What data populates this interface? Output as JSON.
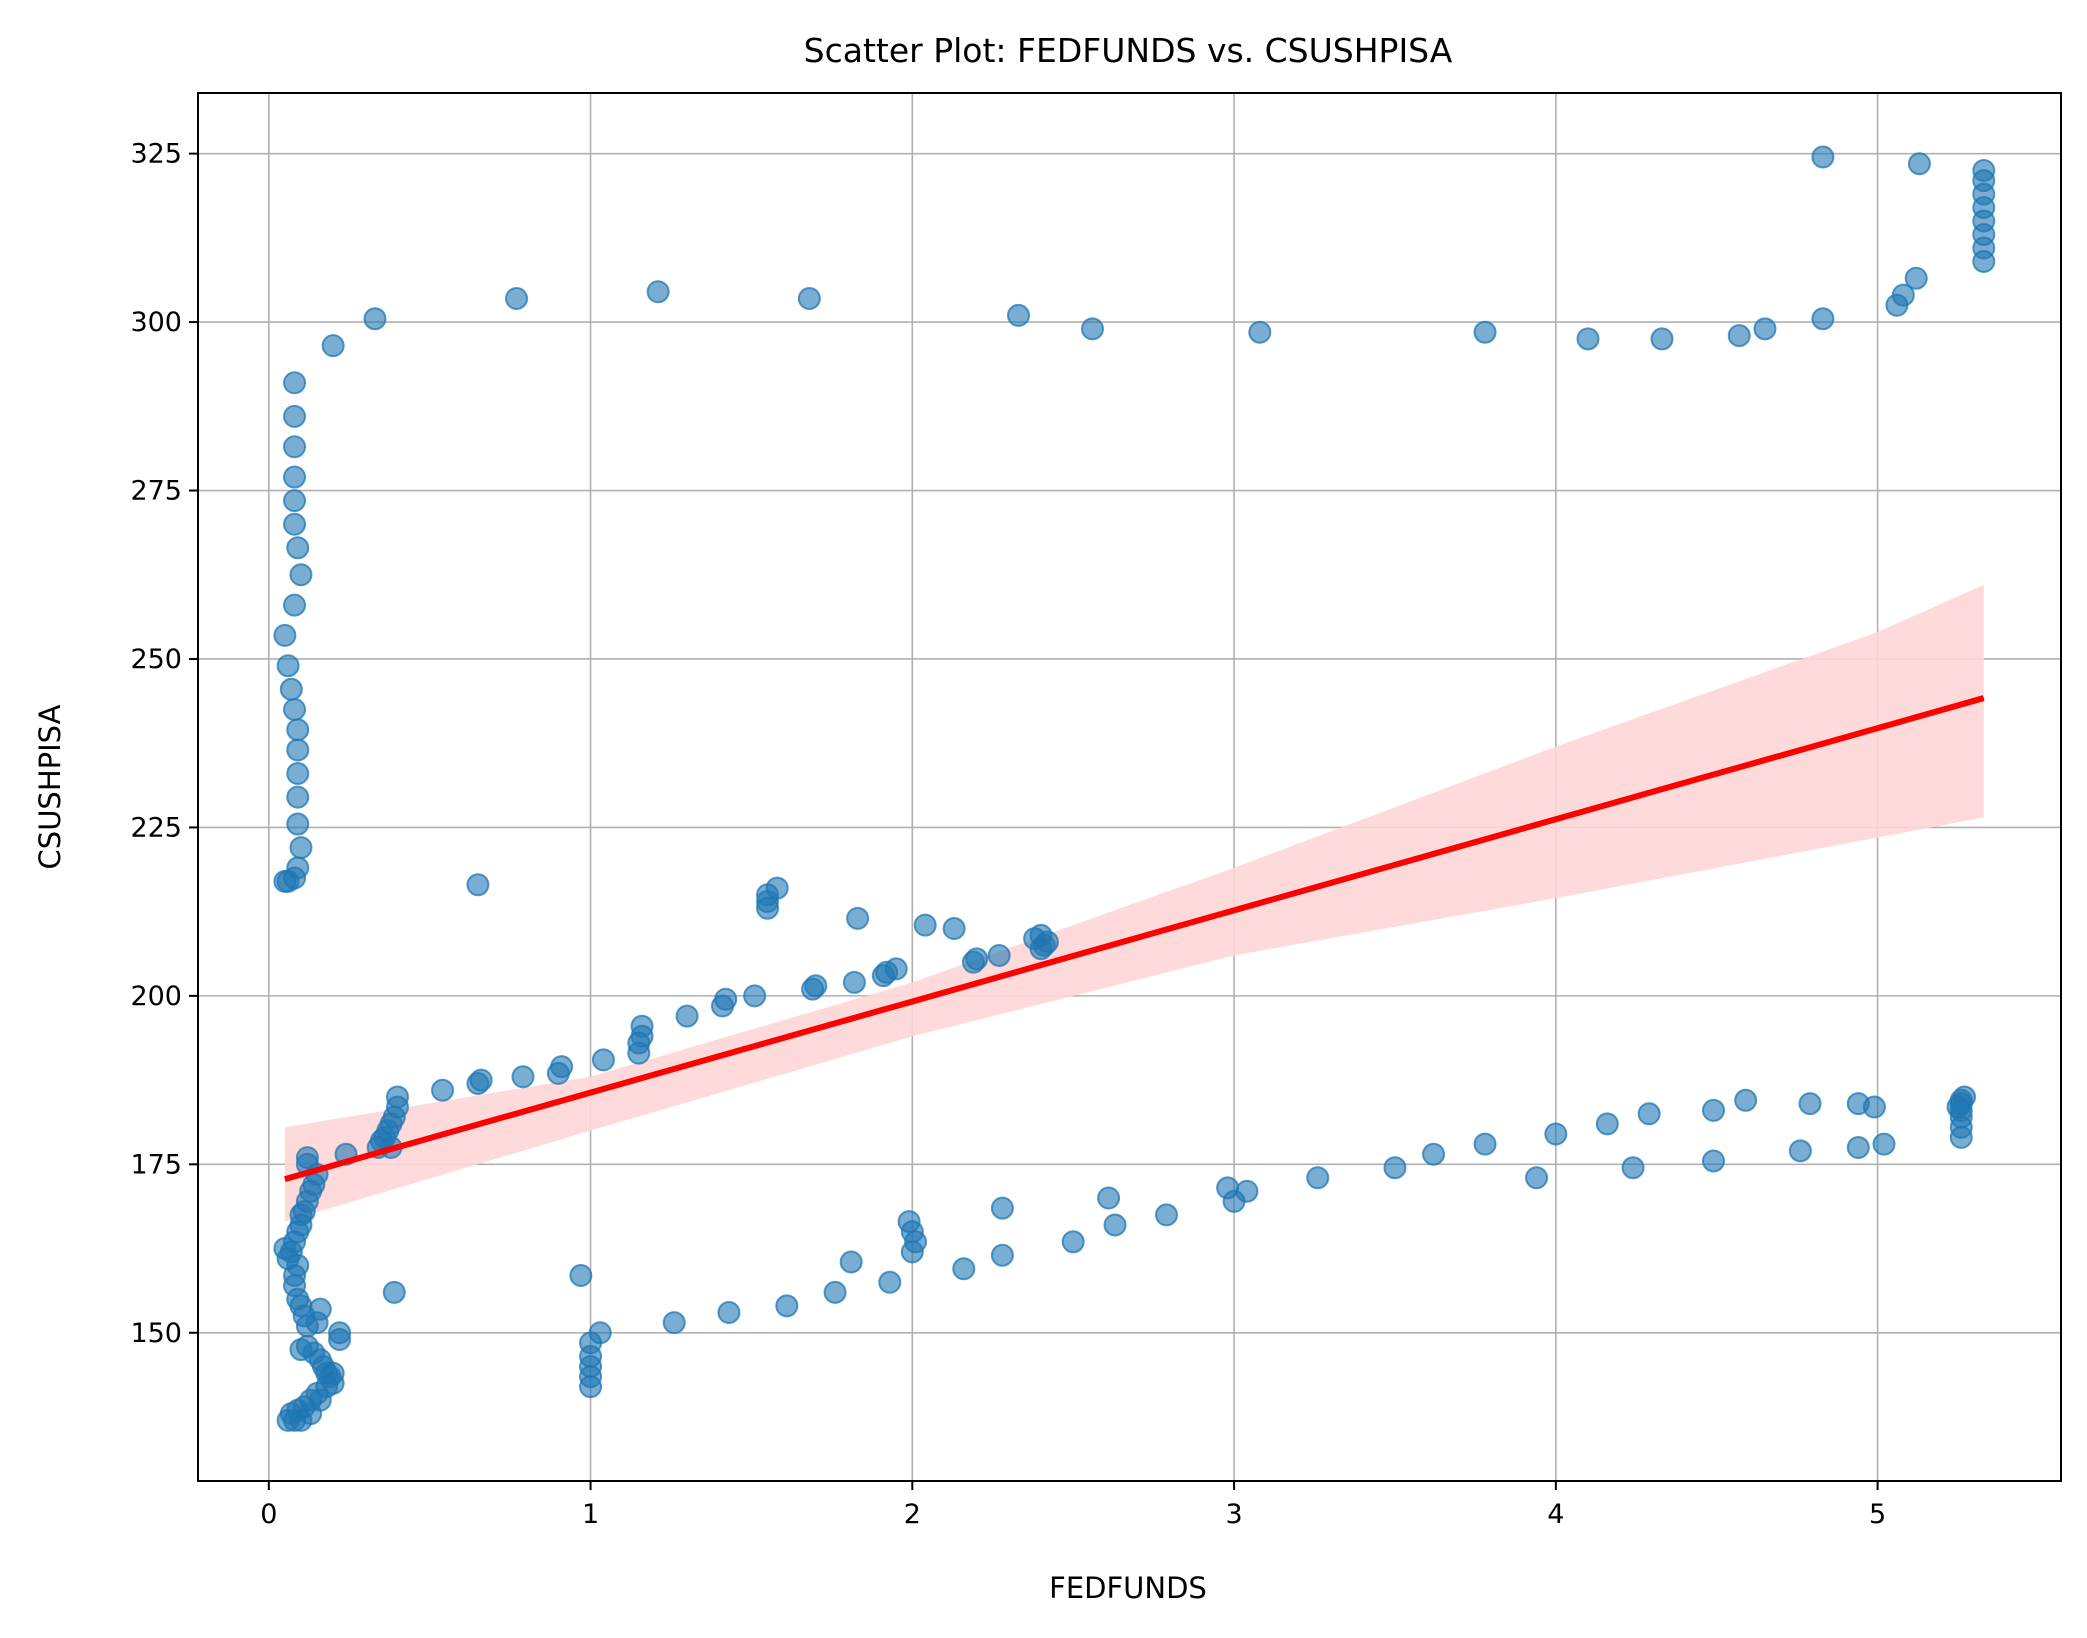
{
  "chart_data": {
    "type": "scatter",
    "title": "Scatter Plot: FEDFUNDS vs. CSUSHPISA",
    "xlabel": "FEDFUNDS",
    "ylabel": "CSUSHPISA",
    "xlim": [
      -0.22,
      5.57
    ],
    "ylim": [
      128,
      334
    ],
    "xticks": [
      0,
      1,
      2,
      3,
      4,
      5
    ],
    "xtick_labels": [
      "0",
      "1",
      "2",
      "3",
      "4",
      "5"
    ],
    "yticks": [
      150,
      175,
      200,
      225,
      250,
      275,
      300,
      325
    ],
    "ytick_labels": [
      "150",
      "175",
      "200",
      "225",
      "250",
      "275",
      "300",
      "325"
    ],
    "grid": true,
    "colors": {
      "points": "#1f77b4",
      "fit_line": "#ff0000",
      "confidence_band": "#ffd6d6"
    },
    "series": [
      {
        "type": "scatter",
        "points": [
          [
            0.05,
            217
          ],
          [
            0.06,
            217
          ],
          [
            0.08,
            217.5
          ],
          [
            0.09,
            219
          ],
          [
            0.1,
            222
          ],
          [
            0.09,
            225.5
          ],
          [
            0.09,
            229.5
          ],
          [
            0.09,
            233
          ],
          [
            0.09,
            236.5
          ],
          [
            0.09,
            239.5
          ],
          [
            0.08,
            242.5
          ],
          [
            0.07,
            245.5
          ],
          [
            0.06,
            249
          ],
          [
            0.05,
            253.5
          ],
          [
            0.08,
            258
          ],
          [
            0.1,
            262.5
          ],
          [
            0.09,
            266.5
          ],
          [
            0.08,
            270
          ],
          [
            0.08,
            273.5
          ],
          [
            0.08,
            277
          ],
          [
            0.08,
            281.5
          ],
          [
            0.08,
            286
          ],
          [
            0.08,
            291
          ],
          [
            0.2,
            296.5
          ],
          [
            0.33,
            300.5
          ],
          [
            0.77,
            303.5
          ],
          [
            1.21,
            304.5
          ],
          [
            1.68,
            303.5
          ],
          [
            2.33,
            301
          ],
          [
            2.56,
            299
          ],
          [
            3.08,
            298.5
          ],
          [
            3.78,
            298.5
          ],
          [
            4.1,
            297.5
          ],
          [
            4.33,
            297.5
          ],
          [
            4.57,
            298
          ],
          [
            4.65,
            299
          ],
          [
            4.83,
            300.5
          ],
          [
            5.06,
            302.5
          ],
          [
            5.08,
            304
          ],
          [
            5.12,
            306.5
          ],
          [
            4.83,
            324.5
          ],
          [
            5.13,
            323.5
          ],
          [
            5.33,
            322.5
          ],
          [
            5.33,
            321
          ],
          [
            5.33,
            319
          ],
          [
            5.33,
            317
          ],
          [
            5.33,
            315
          ],
          [
            5.33,
            313
          ],
          [
            5.33,
            311
          ],
          [
            5.33,
            309
          ],
          [
            0.05,
            162.5
          ],
          [
            0.06,
            161
          ],
          [
            0.07,
            162
          ],
          [
            0.08,
            163.5
          ],
          [
            0.09,
            165
          ],
          [
            0.1,
            166
          ],
          [
            0.1,
            167.5
          ],
          [
            0.09,
            160
          ],
          [
            0.08,
            158.5
          ],
          [
            0.08,
            157
          ],
          [
            0.09,
            155
          ],
          [
            0.1,
            154
          ],
          [
            0.11,
            152.5
          ],
          [
            0.12,
            151
          ],
          [
            0.12,
            148
          ],
          [
            0.1,
            147.5
          ],
          [
            0.14,
            147
          ],
          [
            0.16,
            146
          ],
          [
            0.17,
            145
          ],
          [
            0.18,
            144
          ],
          [
            0.19,
            143.5
          ],
          [
            0.2,
            142.5
          ],
          [
            0.18,
            142
          ],
          [
            0.15,
            141
          ],
          [
            0.13,
            140
          ],
          [
            0.11,
            139
          ],
          [
            0.09,
            138.5
          ],
          [
            0.07,
            138
          ],
          [
            0.06,
            137
          ],
          [
            0.08,
            137
          ],
          [
            0.1,
            137
          ],
          [
            0.13,
            138
          ],
          [
            0.16,
            140
          ],
          [
            0.2,
            144
          ],
          [
            0.22,
            149
          ],
          [
            0.22,
            150
          ],
          [
            0.16,
            153.5
          ],
          [
            0.15,
            151.5
          ],
          [
            0.39,
            156
          ],
          [
            0.97,
            158.5
          ],
          [
            1.0,
            148.5
          ],
          [
            1.0,
            146.5
          ],
          [
            1.0,
            145
          ],
          [
            1.0,
            143.5
          ],
          [
            1.0,
            142
          ],
          [
            1.03,
            150
          ],
          [
            1.26,
            151.5
          ],
          [
            1.43,
            153
          ],
          [
            1.61,
            154
          ],
          [
            1.76,
            156
          ],
          [
            1.81,
            160.5
          ],
          [
            1.93,
            157.5
          ],
          [
            1.99,
            166.5
          ],
          [
            2.0,
            165
          ],
          [
            2.01,
            163.5
          ],
          [
            2.0,
            162
          ],
          [
            2.16,
            159.5
          ],
          [
            2.28,
            161.5
          ],
          [
            2.28,
            168.5
          ],
          [
            2.5,
            163.5
          ],
          [
            2.61,
            170
          ],
          [
            2.63,
            166
          ],
          [
            2.79,
            167.5
          ],
          [
            2.98,
            171.5
          ],
          [
            3.0,
            169.5
          ],
          [
            3.04,
            171
          ],
          [
            3.26,
            173
          ],
          [
            3.5,
            174.5
          ],
          [
            3.62,
            176.5
          ],
          [
            3.78,
            178
          ],
          [
            3.94,
            173
          ],
          [
            4.0,
            179.5
          ],
          [
            4.16,
            181
          ],
          [
            4.24,
            174.5
          ],
          [
            4.29,
            182.5
          ],
          [
            4.49,
            183
          ],
          [
            4.49,
            175.5
          ],
          [
            4.59,
            184.5
          ],
          [
            4.76,
            177
          ],
          [
            4.79,
            184
          ],
          [
            4.94,
            184
          ],
          [
            4.94,
            177.5
          ],
          [
            4.99,
            183.5
          ],
          [
            5.02,
            178
          ],
          [
            5.26,
            179
          ],
          [
            5.26,
            180.5
          ],
          [
            5.26,
            182
          ],
          [
            5.26,
            183
          ],
          [
            5.26,
            184
          ],
          [
            5.26,
            184.5
          ],
          [
            5.25,
            183.5
          ],
          [
            5.27,
            185
          ],
          [
            0.11,
            168
          ],
          [
            0.12,
            169.5
          ],
          [
            0.13,
            171
          ],
          [
            0.14,
            172
          ],
          [
            0.15,
            173.5
          ],
          [
            0.12,
            175
          ],
          [
            0.12,
            176
          ],
          [
            0.24,
            176.5
          ],
          [
            0.34,
            177.5
          ],
          [
            0.35,
            178.5
          ],
          [
            0.36,
            179
          ],
          [
            0.37,
            180
          ],
          [
            0.38,
            177.5
          ],
          [
            0.38,
            181
          ],
          [
            0.39,
            182
          ],
          [
            0.4,
            183.5
          ],
          [
            0.4,
            185
          ],
          [
            0.54,
            186
          ],
          [
            0.65,
            187
          ],
          [
            0.66,
            187.5
          ],
          [
            0.79,
            188
          ],
          [
            0.9,
            188.5
          ],
          [
            0.91,
            189.5
          ],
          [
            1.04,
            190.5
          ],
          [
            1.15,
            191.5
          ],
          [
            1.15,
            193
          ],
          [
            1.16,
            194
          ],
          [
            1.16,
            195.5
          ],
          [
            1.3,
            197
          ],
          [
            1.41,
            198.5
          ],
          [
            1.42,
            199.5
          ],
          [
            1.51,
            200
          ],
          [
            1.69,
            201
          ],
          [
            1.7,
            201.5
          ],
          [
            1.82,
            202
          ],
          [
            1.91,
            203
          ],
          [
            1.92,
            203.5
          ],
          [
            1.95,
            204
          ],
          [
            2.19,
            205
          ],
          [
            2.2,
            205.5
          ],
          [
            2.27,
            206
          ],
          [
            2.4,
            207
          ],
          [
            2.41,
            207.5
          ],
          [
            2.42,
            208
          ],
          [
            2.38,
            208.5
          ],
          [
            2.4,
            209
          ],
          [
            2.13,
            210
          ],
          [
            2.04,
            210.5
          ],
          [
            1.83,
            211.5
          ],
          [
            1.55,
            213
          ],
          [
            1.55,
            214
          ],
          [
            1.55,
            215
          ],
          [
            1.58,
            216
          ],
          [
            0.65,
            216.5
          ]
        ]
      },
      {
        "type": "line",
        "points": [
          [
            0.05,
            172.8
          ],
          [
            5.33,
            244.2
          ]
        ]
      },
      {
        "type": "area",
        "upper": [
          [
            0.05,
            180.5
          ],
          [
            1.0,
            188
          ],
          [
            2.0,
            202
          ],
          [
            3.0,
            219
          ],
          [
            4.0,
            237
          ],
          [
            5.0,
            254
          ],
          [
            5.33,
            261
          ]
        ],
        "lower": [
          [
            0.05,
            166.5
          ],
          [
            1.0,
            180
          ],
          [
            2.0,
            194
          ],
          [
            3.0,
            206
          ],
          [
            4.0,
            214.5
          ],
          [
            5.0,
            223.5
          ],
          [
            5.33,
            226.5
          ]
        ]
      }
    ]
  }
}
